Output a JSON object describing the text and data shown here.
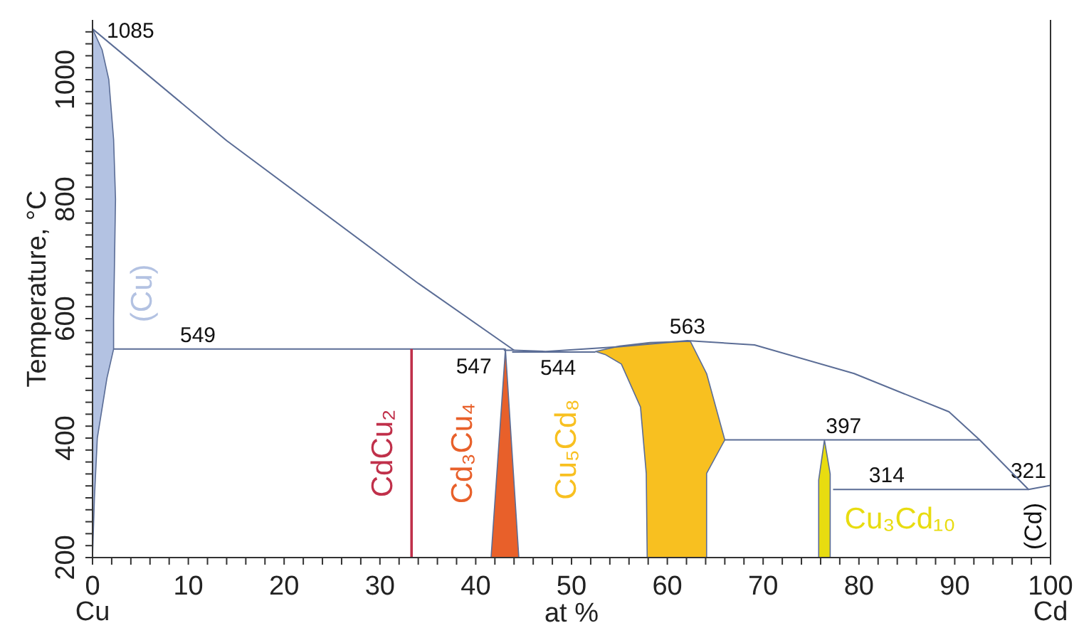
{
  "chart_data": {
    "type": "line",
    "xlabel": "at %",
    "ylabel": "Temperature, °C",
    "xlim": [
      0,
      100
    ],
    "ylim": [
      200,
      1100
    ],
    "xticks": [
      {
        "value": 0,
        "label": "0\nCu"
      },
      {
        "value": 2,
        "label": null
      },
      {
        "value": 4,
        "label": null
      },
      {
        "value": 6,
        "label": null
      },
      {
        "value": 8,
        "label": null
      },
      10,
      {
        "value": 12,
        "label": null
      },
      {
        "value": 14,
        "label": null
      },
      {
        "value": 16,
        "label": null
      },
      {
        "value": 18,
        "label": null
      },
      20,
      {
        "value": 22,
        "label": null
      },
      {
        "value": 24,
        "label": null
      },
      {
        "value": 26,
        "label": null
      },
      {
        "value": 28,
        "label": null
      },
      30,
      {
        "value": 32,
        "label": null
      },
      {
        "value": 34,
        "label": null
      },
      {
        "value": 36,
        "label": null
      },
      {
        "value": 38,
        "label": null
      },
      40,
      {
        "value": 42,
        "label": null
      },
      {
        "value": 44,
        "label": null
      },
      {
        "value": 46,
        "label": null
      },
      {
        "value": 48,
        "label": null
      },
      50,
      {
        "value": 52,
        "label": null
      },
      {
        "value": 54,
        "label": null
      },
      {
        "value": 56,
        "label": null
      },
      {
        "value": 58,
        "label": null
      },
      60,
      {
        "value": 62,
        "label": null
      },
      {
        "value": 64,
        "label": null
      },
      {
        "value": 66,
        "label": null
      },
      {
        "value": 68,
        "label": null
      },
      70,
      {
        "value": 72,
        "label": null
      },
      {
        "value": 74,
        "label": null
      },
      {
        "value": 76,
        "label": null
      },
      {
        "value": 78,
        "label": null
      },
      80,
      {
        "value": 82,
        "label": null
      },
      {
        "value": 84,
        "label": null
      },
      {
        "value": 86,
        "label": null
      },
      {
        "value": 88,
        "label": null
      },
      90,
      {
        "value": 92,
        "label": null
      },
      {
        "value": 94,
        "label": null
      },
      {
        "value": 96,
        "label": null
      },
      {
        "value": 98,
        "label": null
      },
      {
        "value": 100,
        "label": "100\nCd"
      }
    ],
    "yticks": [
      200,
      {
        "value": 220,
        "label": null
      },
      {
        "value": 240,
        "label": null
      },
      {
        "value": 260,
        "label": null
      },
      {
        "value": 280,
        "label": null
      },
      {
        "value": 300,
        "label": null
      },
      {
        "value": 320,
        "label": null
      },
      {
        "value": 340,
        "label": null
      },
      {
        "value": 360,
        "label": null
      },
      {
        "value": 380,
        "label": null
      },
      400,
      {
        "value": 420,
        "label": null
      },
      {
        "value": 440,
        "label": null
      },
      {
        "value": 460,
        "label": null
      },
      {
        "value": 480,
        "label": null
      },
      {
        "value": 500,
        "label": null
      },
      {
        "value": 520,
        "label": null
      },
      {
        "value": 540,
        "label": null
      },
      {
        "value": 560,
        "label": null
      },
      {
        "value": 580,
        "label": null
      },
      600,
      {
        "value": 620,
        "label": null
      },
      {
        "value": 640,
        "label": null
      },
      {
        "value": 660,
        "label": null
      },
      {
        "value": 680,
        "label": null
      },
      {
        "value": 700,
        "label": null
      },
      {
        "value": 720,
        "label": null
      },
      {
        "value": 740,
        "label": null
      },
      {
        "value": 760,
        "label": null
      },
      {
        "value": 780,
        "label": null
      },
      800,
      {
        "value": 820,
        "label": null
      },
      {
        "value": 840,
        "label": null
      },
      {
        "value": 860,
        "label": null
      },
      {
        "value": 880,
        "label": null
      },
      {
        "value": 900,
        "label": null
      },
      {
        "value": 920,
        "label": null
      },
      {
        "value": 940,
        "label": null
      },
      {
        "value": 960,
        "label": null
      },
      {
        "value": 980,
        "label": null
      },
      1000,
      {
        "value": 1020,
        "label": null
      },
      {
        "value": 1040,
        "label": null
      },
      {
        "value": 1060,
        "label": null
      },
      {
        "value": 1080,
        "label": null
      }
    ],
    "marker": "none",
    "line_style": "solid",
    "series": [
      {
        "color": "#5b6d96",
        "x": [
          0,
          14,
          34,
          44
        ],
        "values": [
          1085,
          898,
          659,
          547
        ]
      },
      {
        "color": "#5b6d96",
        "x": [
          2.2,
          43,
          43,
          44,
          47.3,
          55,
          62.1,
          69.1,
          79.5,
          89.4,
          92.6,
          97.7,
          100
        ],
        "values": [
          549,
          549,
          547,
          547,
          545,
          553,
          563,
          556,
          508,
          444,
          397,
          314,
          321
        ]
      },
      {
        "color": "#5b6d96",
        "x": [
          43.8,
          52.5
        ],
        "values": [
          544,
          544
        ]
      },
      {
        "color": "#5b6d96",
        "x": [
          66,
          92.6
        ],
        "values": [
          397,
          397
        ]
      },
      {
        "color": "#5b6d96",
        "x": [
          77.3,
          97.7
        ],
        "values": [
          314,
          314
        ]
      },
      {
        "name": "CdCu₂",
        "color": "#c0304a",
        "x": [
          33.3,
          33.3
        ],
        "values": [
          200,
          549
        ]
      },
      {
        "type": "area",
        "name": "(Cu)",
        "color": "#b3c2e2",
        "x": [
          0,
          1,
          1.7,
          2.2,
          2.4,
          2.3,
          2.2,
          2.2,
          1.5,
          0.5,
          0.2,
          0
        ],
        "values": [
          1085,
          1050,
          1000,
          900,
          800,
          700,
          600,
          549,
          500,
          400,
          300,
          200
        ]
      },
      {
        "type": "area",
        "name": "Cd₃Cu₄",
        "color": "#e8602a",
        "x": [
          43.1,
          44.5,
          41.6
        ],
        "values": [
          549,
          200,
          200
        ]
      },
      {
        "type": "area",
        "name": "Cu₅Cd₈",
        "color": "#f8c020",
        "x": [
          52.5,
          55,
          58.2,
          62.4,
          64.1,
          66,
          64.1,
          64.1,
          57.9,
          57.8,
          57.2,
          55.2,
          53.5
        ],
        "values": [
          545,
          554,
          560,
          562,
          508,
          397,
          341,
          200,
          200,
          341,
          452,
          524,
          540
        ]
      },
      {
        "type": "area",
        "name": "Cu₃Cd₁₀",
        "color": "#e8dc10",
        "x": [
          76.4,
          77,
          77,
          75.8,
          75.8
        ],
        "values": [
          397,
          340,
          200,
          200,
          330
        ]
      }
    ],
    "annotations": [
      {
        "text": "1085",
        "x": 0,
        "y": 1085
      },
      {
        "text": "549",
        "x": 11,
        "y": 549
      },
      {
        "text": "547",
        "x": 39.8,
        "y": 547
      },
      {
        "text": "544",
        "x": 48.6,
        "y": 544
      },
      {
        "text": "563",
        "x": 62.1,
        "y": 563
      },
      {
        "text": "397",
        "x": 78.4,
        "y": 397
      },
      {
        "text": "314",
        "x": 82.9,
        "y": 314
      },
      {
        "text": "321",
        "x": 100,
        "y": 321
      },
      "(Cd)"
    ]
  }
}
